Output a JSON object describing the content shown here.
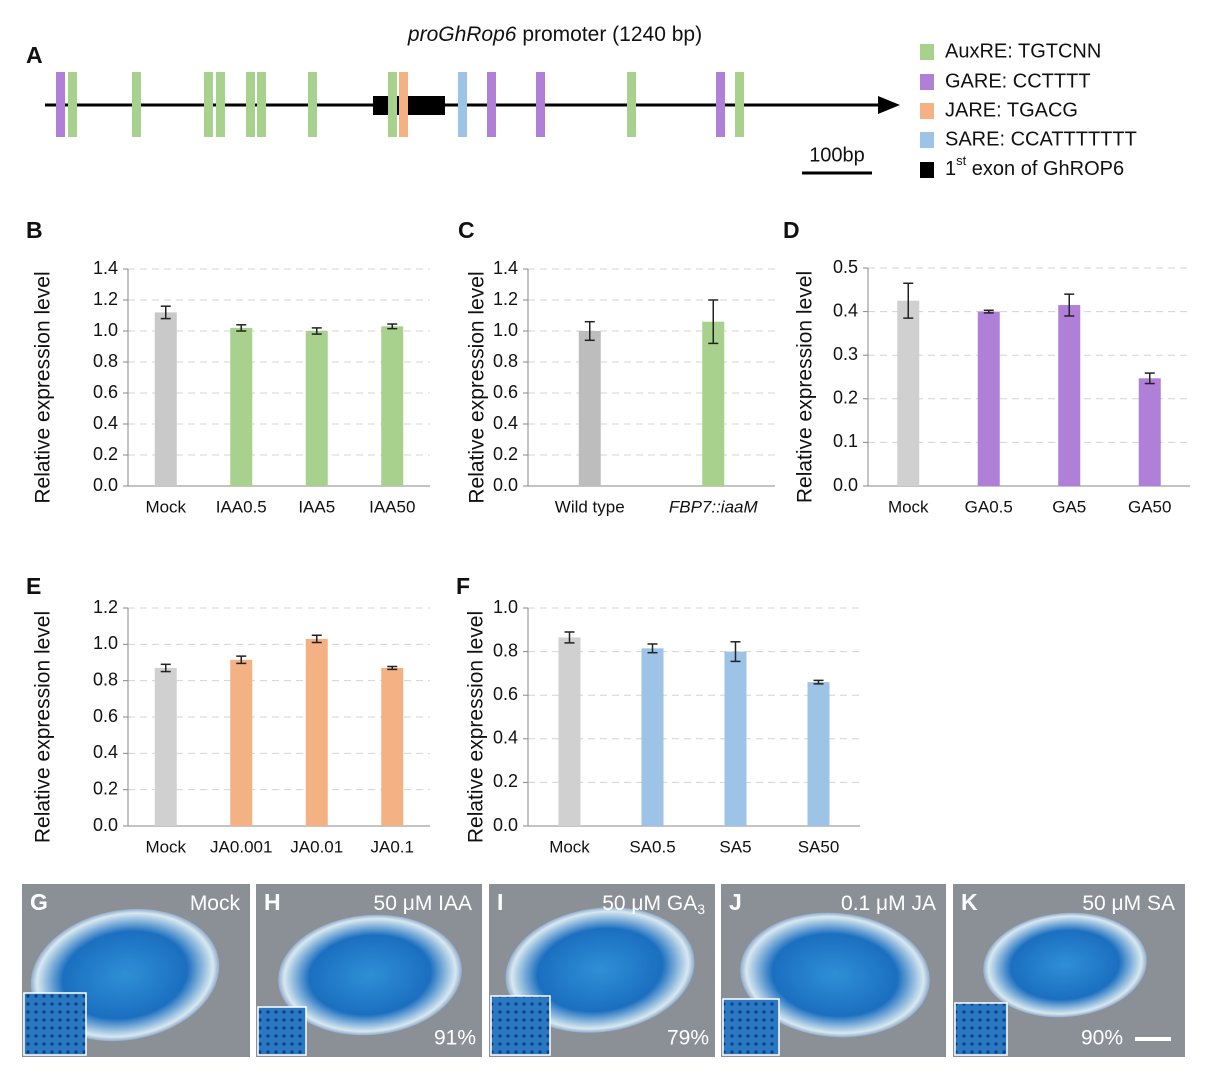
{
  "promoter": {
    "panel": "A",
    "title_italic": "proGhRop6",
    "title_rest": " promoter (1240 bp)",
    "legend": [
      "AuxRE: TGTCNN",
      "GARE: CCTTTT",
      "JARE: TGACG",
      "SARE: CCATTTTTTT"
    ],
    "exon_legend": {
      "main": "1",
      "sup": "st",
      "rest": " exon of GhROP6"
    },
    "scale": "100bp"
  },
  "chart_data": [
    {
      "type": "bar",
      "panel": "B",
      "ylabel": "Relative expression level",
      "categories": [
        "Mock",
        "IAA0.5",
        "IAA5",
        "IAA50"
      ],
      "category_style": [
        "normal",
        "normal",
        "normal",
        "normal"
      ],
      "values": [
        1.12,
        1.02,
        1.0,
        1.03
      ],
      "errors": [
        0.04,
        0.02,
        0.02,
        0.015
      ],
      "colors": [
        "#c9c9c9",
        "#a9d18e",
        "#a9d18e",
        "#a9d18e"
      ],
      "ylim": [
        0,
        1.4
      ],
      "yticks": [
        {
          "value": 0,
          "label": "0.0"
        },
        0.2,
        0.4,
        0.6,
        0.8,
        {
          "value": 1,
          "label": "1.0"
        },
        1.2,
        1.4
      ],
      "grid": true
    },
    {
      "type": "bar",
      "panel": "C",
      "ylabel": "Relative expression level",
      "categories": [
        "Wild type",
        "FBP7::iaaM"
      ],
      "category_style": [
        "normal",
        "italic"
      ],
      "values": [
        1.0,
        1.06
      ],
      "errors": [
        0.06,
        0.14
      ],
      "colors": [
        "#bdbdbd",
        "#a9d18e"
      ],
      "ylim": [
        0,
        1.4
      ],
      "yticks": [
        {
          "value": 0,
          "label": "0.0"
        },
        0.2,
        0.4,
        0.6,
        0.8,
        {
          "value": 1,
          "label": "1.0"
        },
        1.2,
        1.4
      ],
      "grid": true
    },
    {
      "type": "bar",
      "panel": "D",
      "ylabel": "Relative expression level",
      "categories": [
        "Mock",
        "GA0.5",
        "GA5",
        "GA50"
      ],
      "category_style": [
        "normal",
        "normal",
        "normal",
        "normal"
      ],
      "values": [
        0.425,
        0.4,
        0.415,
        0.247
      ],
      "errors": [
        0.04,
        0.003,
        0.025,
        0.012
      ],
      "colors": [
        "#d0d0d0",
        "#b07fd8",
        "#b07fd8",
        "#b07fd8"
      ],
      "ylim": [
        0,
        0.5
      ],
      "yticks": [
        {
          "value": 0,
          "label": "0.0"
        },
        0.1,
        0.2,
        0.3,
        0.4,
        0.5
      ],
      "grid": true
    },
    {
      "type": "bar",
      "panel": "E",
      "ylabel": "Relative expression level",
      "categories": [
        "Mock",
        "JA0.001",
        "JA0.01",
        "JA0.1"
      ],
      "category_style": [
        "normal",
        "normal",
        "normal",
        "normal"
      ],
      "values": [
        0.87,
        0.915,
        1.03,
        0.87
      ],
      "errors": [
        0.02,
        0.02,
        0.02,
        0.008
      ],
      "colors": [
        "#d0d0d0",
        "#f4b183",
        "#f4b183",
        "#f4b183"
      ],
      "ylim": [
        0,
        1.2
      ],
      "yticks": [
        {
          "value": 0,
          "label": "0.0"
        },
        0.2,
        0.4,
        0.6,
        0.8,
        {
          "value": 1,
          "label": "1.0"
        },
        1.2
      ],
      "grid": true
    },
    {
      "type": "bar",
      "panel": "F",
      "ylabel": "Relative expression level",
      "categories": [
        "Mock",
        "SA0.5",
        "SA5",
        "SA50"
      ],
      "category_style": [
        "normal",
        "normal",
        "normal",
        "normal"
      ],
      "values": [
        0.865,
        0.815,
        0.8,
        0.66
      ],
      "errors": [
        0.025,
        0.02,
        0.045,
        0.008
      ],
      "colors": [
        "#d0d0d0",
        "#9dc3e6",
        "#9dc3e6",
        "#9dc3e6"
      ],
      "ylim": [
        0,
        1.0
      ],
      "yticks": [
        {
          "value": 0,
          "label": "0.0"
        },
        0.2,
        0.4,
        0.6,
        0.8,
        {
          "value": 1,
          "label": "1.0"
        }
      ],
      "grid": true
    }
  ],
  "photos": [
    {
      "panel": "G",
      "caption": "Mock"
    },
    {
      "panel": "H",
      "caption": "50 μM IAA",
      "percent": "91%"
    },
    {
      "panel": "I",
      "caption": "50 μM GA",
      "caption_sub": "3",
      "percent": "79%"
    },
    {
      "panel": "J",
      "caption": "0.1 μM JA"
    },
    {
      "panel": "K",
      "caption": "50 μM SA",
      "percent": "90%"
    }
  ]
}
